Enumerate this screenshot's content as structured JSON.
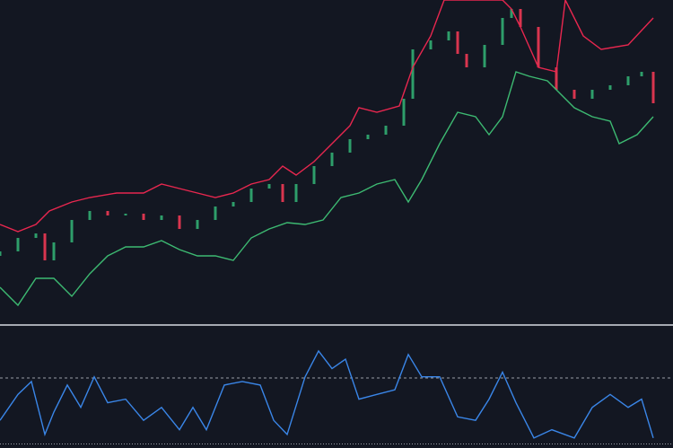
{
  "chart_data": [
    {
      "type": "candlestick",
      "xlim": [
        0,
        750
      ],
      "ylim": [
        0,
        360
      ],
      "up_color": "#2e9e6a",
      "down_color": "#d9354f",
      "x": [
        0,
        20,
        40,
        50,
        60,
        80,
        100,
        120,
        140,
        160,
        180,
        200,
        220,
        240,
        260,
        280,
        300,
        315,
        330,
        350,
        370,
        390,
        410,
        430,
        450,
        460,
        480,
        500,
        510,
        520,
        540,
        560,
        570,
        580,
        600,
        620,
        640,
        660,
        680,
        700,
        715,
        728
      ],
      "open": [
        75,
        80,
        95,
        100,
        70,
        90,
        115,
        125,
        120,
        122,
        115,
        120,
        105,
        115,
        130,
        135,
        150,
        155,
        135,
        155,
        175,
        190,
        205,
        210,
        220,
        250,
        305,
        315,
        325,
        300,
        285,
        310,
        340,
        350,
        330,
        285,
        260,
        250,
        260,
        265,
        275,
        280
      ],
      "close": [
        80,
        95,
        100,
        70,
        90,
        115,
        125,
        120,
        122,
        115,
        120,
        105,
        115,
        130,
        135,
        150,
        155,
        135,
        155,
        175,
        190,
        205,
        210,
        220,
        250,
        305,
        315,
        325,
        300,
        285,
        310,
        340,
        350,
        330,
        285,
        260,
        250,
        260,
        265,
        275,
        280,
        245
      ],
      "series": [
        {
          "color": "#e8274f",
          "x": [
            0,
            20,
            40,
            55,
            80,
            100,
            130,
            160,
            180,
            200,
            220,
            240,
            260,
            280,
            300,
            315,
            330,
            350,
            370,
            390,
            400,
            420,
            445,
            460,
            480,
            495,
            560,
            570,
            580,
            600,
            620,
            630,
            650,
            670,
            700,
            728
          ],
          "values": [
            110,
            102,
            110,
            125,
            135,
            140,
            145,
            145,
            155,
            150,
            145,
            140,
            145,
            155,
            160,
            175,
            165,
            180,
            200,
            220,
            240,
            235,
            242,
            285,
            320,
            360,
            360,
            350,
            330,
            285,
            280,
            360,
            320,
            305,
            310,
            340
          ]
        },
        {
          "color": "#3dba72",
          "x": [
            0,
            20,
            40,
            60,
            80,
            100,
            120,
            140,
            160,
            180,
            200,
            220,
            240,
            260,
            280,
            300,
            320,
            340,
            360,
            380,
            400,
            420,
            440,
            455,
            470,
            490,
            510,
            530,
            545,
            560,
            575,
            590,
            610,
            640,
            660,
            680,
            690,
            710,
            728
          ],
          "values": [
            40,
            20,
            50,
            50,
            30,
            55,
            75,
            85,
            85,
            92,
            82,
            75,
            75,
            70,
            95,
            105,
            112,
            110,
            115,
            140,
            145,
            155,
            160,
            135,
            160,
            200,
            235,
            230,
            210,
            230,
            280,
            275,
            270,
            240,
            230,
            225,
            200,
            210,
            230
          ]
        }
      ]
    },
    {
      "type": "line",
      "xlim": [
        0,
        750
      ],
      "ylim": [
        0,
        100
      ],
      "yticks": [
        58,
        2
      ],
      "grid": true,
      "series": [
        {
          "color": "#3a86e8",
          "x": [
            0,
            20,
            35,
            50,
            60,
            75,
            90,
            105,
            120,
            140,
            160,
            180,
            200,
            215,
            230,
            250,
            270,
            290,
            305,
            320,
            340,
            355,
            370,
            385,
            400,
            420,
            440,
            455,
            470,
            490,
            510,
            530,
            545,
            560,
            575,
            595,
            615,
            640,
            660,
            680,
            700,
            715,
            728
          ],
          "values": [
            22,
            44,
            55,
            10,
            29,
            52,
            33,
            59,
            37,
            40,
            22,
            33,
            14,
            33,
            14,
            52,
            55,
            52,
            22,
            10,
            59,
            81,
            66,
            74,
            40,
            44,
            48,
            78,
            59,
            59,
            25,
            22,
            40,
            63,
            37,
            7,
            14,
            7,
            33,
            44,
            33,
            40,
            7
          ]
        }
      ]
    }
  ]
}
